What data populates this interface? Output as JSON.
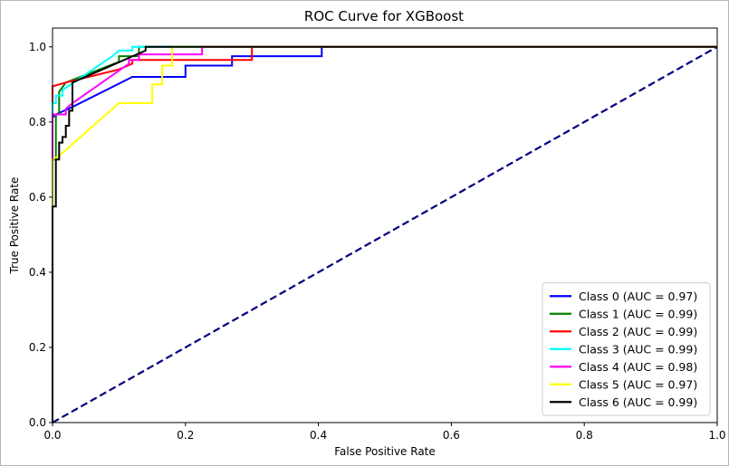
{
  "chart_data": {
    "type": "line",
    "title": "ROC Curve for XGBoost",
    "xlabel": "False Positive Rate",
    "ylabel": "True Positive Rate",
    "xlim": [
      0,
      1
    ],
    "ylim": [
      0,
      1.05
    ],
    "xticks": [
      "0.0",
      "0.2",
      "0.4",
      "0.6",
      "0.8",
      "1.0"
    ],
    "yticks": [
      "0.0",
      "0.2",
      "0.4",
      "0.6",
      "0.8",
      "1.0"
    ],
    "grid": false,
    "legend_position": "lower-right",
    "diagonal": {
      "color": "#000080",
      "style": "dashed",
      "x": [
        0,
        1
      ],
      "y": [
        0,
        1
      ]
    },
    "series": [
      {
        "name": "Class 0 (AUC = 0.97)",
        "color": "#0000ff",
        "x": [
          0,
          0,
          0.005,
          0.005,
          0.03,
          0.12,
          0.2,
          0.2,
          0.27,
          0.27,
          0.405,
          0.405,
          1
        ],
        "y": [
          0,
          0.815,
          0.815,
          0.82,
          0.84,
          0.92,
          0.92,
          0.95,
          0.95,
          0.975,
          0.975,
          1,
          1
        ]
      },
      {
        "name": "Class 1 (AUC = 0.99)",
        "color": "#008000",
        "x": [
          0,
          0,
          0.005,
          0.005,
          0.01,
          0.01,
          0.02,
          0.1,
          0.1,
          0.13,
          0.13,
          1
        ],
        "y": [
          0,
          0.7,
          0.7,
          0.82,
          0.82,
          0.88,
          0.905,
          0.96,
          0.975,
          0.975,
          1,
          1
        ]
      },
      {
        "name": "Class 2 (AUC = 0.99)",
        "color": "#ff0000",
        "x": [
          0,
          0,
          0.02,
          0.1,
          0.12,
          0.12,
          0.3,
          0.3,
          1
        ],
        "y": [
          0,
          0.895,
          0.905,
          0.94,
          0.955,
          0.965,
          0.965,
          1,
          1
        ]
      },
      {
        "name": "Class 3 (AUC = 0.99)",
        "color": "#00ffff",
        "x": [
          0,
          0,
          0.005,
          0.005,
          0.015,
          0.015,
          0.09,
          0.1,
          0.12,
          0.12,
          0.145,
          0.145,
          1
        ],
        "y": [
          0,
          0.85,
          0.85,
          0.87,
          0.87,
          0.885,
          0.975,
          0.99,
          0.99,
          1,
          1,
          1,
          1
        ]
      },
      {
        "name": "Class 4 (AUC = 0.98)",
        "color": "#ff00ff",
        "x": [
          0,
          0,
          0.02,
          0.02,
          0.03,
          0.115,
          0.115,
          0.13,
          0.13,
          0.225,
          0.225,
          1
        ],
        "y": [
          0,
          0.82,
          0.82,
          0.835,
          0.85,
          0.955,
          0.965,
          0.965,
          0.98,
          0.98,
          1,
          1
        ]
      },
      {
        "name": "Class 5 (AUC = 0.97)",
        "color": "#ffff00",
        "x": [
          0,
          0,
          0.01,
          0.1,
          0.15,
          0.15,
          0.165,
          0.165,
          0.18,
          0.18,
          1
        ],
        "y": [
          0,
          0.7,
          0.71,
          0.85,
          0.85,
          0.9,
          0.9,
          0.95,
          0.95,
          1,
          1
        ]
      },
      {
        "name": "Class 6 (AUC = 0.99)",
        "color": "#000000",
        "x": [
          0,
          0,
          0.005,
          0.005,
          0.01,
          0.01,
          0.015,
          0.015,
          0.02,
          0.02,
          0.025,
          0.025,
          0.03,
          0.03,
          0.14,
          0.14,
          1
        ],
        "y": [
          0,
          0.575,
          0.575,
          0.7,
          0.7,
          0.745,
          0.745,
          0.76,
          0.76,
          0.79,
          0.79,
          0.83,
          0.83,
          0.905,
          0.99,
          1,
          1
        ]
      }
    ]
  }
}
